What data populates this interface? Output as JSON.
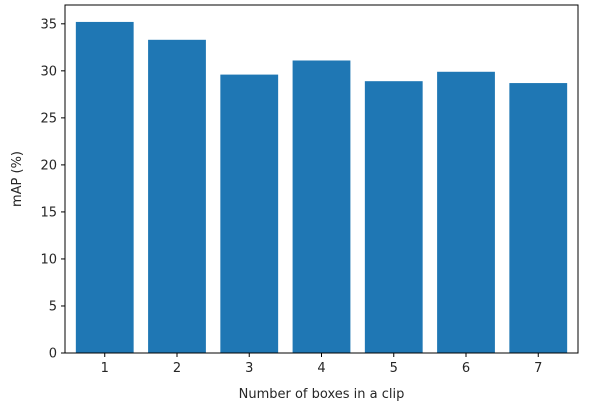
{
  "chart_data": {
    "type": "bar",
    "title": "",
    "xlabel": "Number of boxes in a clip",
    "ylabel": "mAP (%)",
    "categories": [
      "1",
      "2",
      "3",
      "4",
      "5",
      "6",
      "7"
    ],
    "values": [
      35.2,
      33.3,
      29.6,
      31.1,
      28.9,
      29.9,
      28.7
    ],
    "ylim": [
      0,
      37
    ],
    "yticks": [
      0,
      5,
      10,
      15,
      20,
      25,
      30,
      35
    ],
    "grid": false,
    "colors": {
      "bar": "#1f77b4",
      "axis": "#000000",
      "text": "#262626"
    }
  }
}
